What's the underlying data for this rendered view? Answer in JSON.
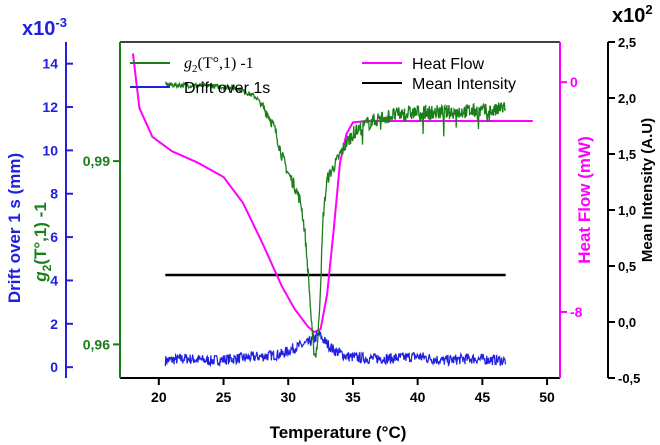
{
  "chart_data": {
    "type": "line",
    "xlabel": "Temperature (°C)",
    "x_ticks": [
      20,
      25,
      30,
      35,
      40,
      45,
      50
    ],
    "xlim": [
      17,
      51
    ],
    "axes": {
      "drift": {
        "label": "Drift over 1 s (mm)",
        "multiplier": "x10",
        "exponent": "-3",
        "ticks": [
          "0",
          "2",
          "4",
          "6",
          "8",
          "10",
          "12",
          "14"
        ],
        "ylim": [
          -0.5,
          15
        ],
        "color": "#2020e0"
      },
      "g2": {
        "label_g": "g",
        "label_sub": "2",
        "label_rest": "(T°,1) -1",
        "ticks": [
          "0,96",
          "0,99"
        ],
        "tick_values": [
          0.96,
          0.99
        ],
        "ylim": [
          0.9545,
          1.0095
        ],
        "color": "#1a7f1a"
      },
      "heat": {
        "label": "Heat Flow (mW)",
        "ticks": [
          "-8",
          "0"
        ],
        "tick_values": [
          -8,
          0
        ],
        "ylim": [
          -10.3,
          1.4
        ],
        "color": "#ff00ff"
      },
      "intensity": {
        "label": "Mean Intensity (A.U)",
        "multiplier": "x10",
        "exponent": "2",
        "ticks": [
          "-0,5",
          "0,0",
          "0,5",
          "1,0",
          "1,5",
          "2,0",
          "2,5"
        ],
        "tick_values": [
          -0.5,
          0.0,
          0.5,
          1.0,
          1.5,
          2.0,
          2.5
        ],
        "ylim": [
          -0.5,
          2.5
        ],
        "color": "#000000"
      }
    },
    "legend": {
      "placement": "top",
      "g2_label_prefix": "g",
      "g2_label_sub": "2",
      "g2_label_rest": "(T°,1) -1",
      "drift_label": "Drift  over 1s",
      "heat_label": "Heat Flow",
      "intensity_label": "Mean Intensity"
    },
    "series": {
      "g2": {
        "x": [
          20.5,
          24.0,
          26.0,
          27.5,
          28.0,
          28.5,
          29.0,
          29.5,
          30.0,
          30.5,
          31.0,
          31.3,
          31.6,
          31.9,
          32.1,
          32.3,
          32.5,
          32.7,
          33.0,
          33.5,
          34.0,
          34.5,
          35.0,
          36.0,
          37.0,
          38.0,
          40.0,
          42.0,
          44.0,
          46.0,
          46.8
        ],
        "y": [
          1.0025,
          1.0023,
          1.002,
          1.0005,
          0.999,
          0.9975,
          0.995,
          0.991,
          0.988,
          0.986,
          0.983,
          0.978,
          0.97,
          0.96,
          0.958,
          0.961,
          0.97,
          0.981,
          0.987,
          0.989,
          0.991,
          0.993,
          0.9945,
          0.996,
          0.997,
          0.9975,
          0.998,
          0.998,
          0.9982,
          0.9982,
          0.999
        ]
      },
      "heat_flow": {
        "x": [
          18.0,
          18.5,
          19.5,
          21.0,
          23.0,
          25.0,
          26.5,
          28.0,
          29.5,
          30.5,
          31.5,
          32.0,
          32.5,
          33.0,
          33.5,
          34.0,
          34.5,
          35.0,
          36.0,
          38.0,
          42.0,
          46.0,
          49.0
        ],
        "y": [
          1.0,
          -0.9,
          -1.9,
          -2.4,
          -2.8,
          -3.3,
          -4.2,
          -5.6,
          -7.1,
          -7.9,
          -8.5,
          -8.7,
          -8.6,
          -7.4,
          -5.2,
          -2.8,
          -1.8,
          -1.4,
          -1.35,
          -1.35,
          -1.35,
          -1.35,
          -1.35
        ]
      },
      "drift": {
        "x": [
          20.5,
          22.0,
          24.0,
          26.0,
          28.0,
          29.5,
          30.5,
          31.5,
          32.0,
          32.4,
          32.8,
          33.5,
          34.5,
          36.0,
          38.0,
          40.0,
          42.0,
          44.0,
          46.8
        ],
        "y": [
          0.3,
          0.4,
          0.3,
          0.4,
          0.5,
          0.6,
          0.9,
          1.1,
          1.3,
          1.5,
          1.2,
          0.8,
          0.5,
          0.4,
          0.4,
          0.5,
          0.3,
          0.4,
          0.3
        ],
        "noise": 0.25
      },
      "mean_intensity": {
        "x": [
          20.5,
          46.8
        ],
        "y": [
          0.42,
          0.42
        ]
      }
    }
  }
}
